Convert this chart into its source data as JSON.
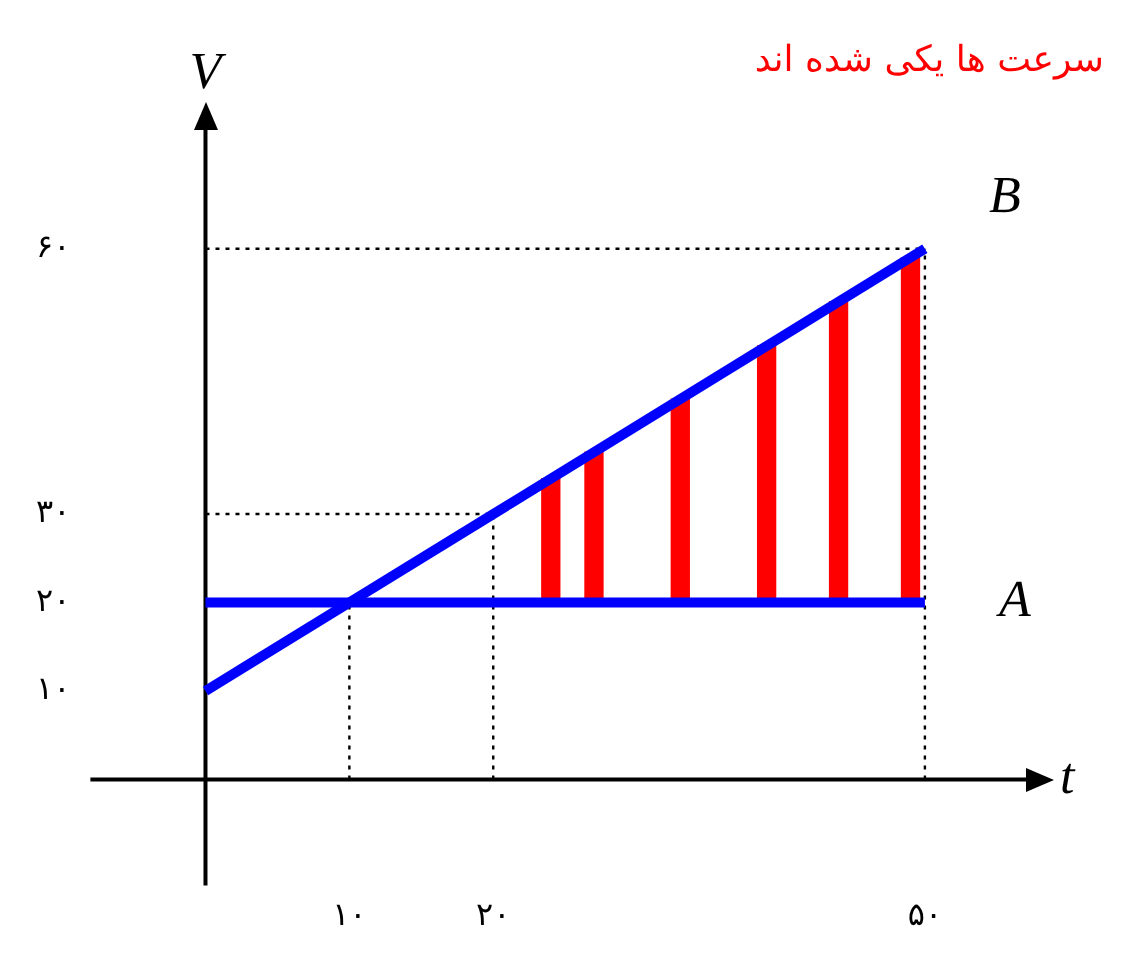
{
  "chart_data": {
    "type": "line",
    "annotations": [
      "سرعت ها یکی شده اند"
    ],
    "xlabel": "t",
    "ylabel": "V",
    "xlim": [
      -8,
      58
    ],
    "ylim": [
      -12,
      75
    ],
    "xticks": [
      {
        "value": 10,
        "label": "۱۰"
      },
      {
        "value": 20,
        "label": "۲۰"
      },
      {
        "value": 50,
        "label": "۵۰"
      }
    ],
    "yticks": [
      {
        "value": 10,
        "label": "۱۰"
      },
      {
        "value": 20,
        "label": "۲۰"
      },
      {
        "value": 30,
        "label": "۳۰"
      },
      {
        "value": 60,
        "label": "۶۰"
      }
    ],
    "series": [
      {
        "name": "A",
        "color": "#0000ff",
        "x": [
          0,
          50
        ],
        "values": [
          20,
          20
        ]
      },
      {
        "name": "B",
        "color": "#0000ff",
        "x": [
          0,
          50
        ],
        "values": [
          10,
          60
        ]
      },
      {
        "type": "bar",
        "color": "#ff0000",
        "x": [
          24,
          27,
          33,
          39,
          44,
          49
        ],
        "base": [
          20,
          20,
          20,
          20,
          20,
          20
        ],
        "values": [
          14,
          17,
          23,
          29,
          34,
          39
        ]
      }
    ],
    "ref_lines": [
      {
        "axis": "x",
        "value": 10,
        "line_style": "dotted",
        "color": "#000000"
      },
      {
        "axis": "x",
        "value": 20,
        "line_style": "dotted",
        "color": "#000000"
      },
      {
        "axis": "x",
        "value": 50,
        "line_style": "dotted",
        "color": "#000000"
      },
      {
        "axis": "y",
        "value": 30,
        "line_style": "dotted",
        "color": "#000000"
      },
      {
        "axis": "y",
        "value": 60,
        "line_style": "dotted",
        "color": "#000000"
      }
    ],
    "legend": false,
    "grid": false,
    "marker": "none",
    "line_style": "solid"
  }
}
